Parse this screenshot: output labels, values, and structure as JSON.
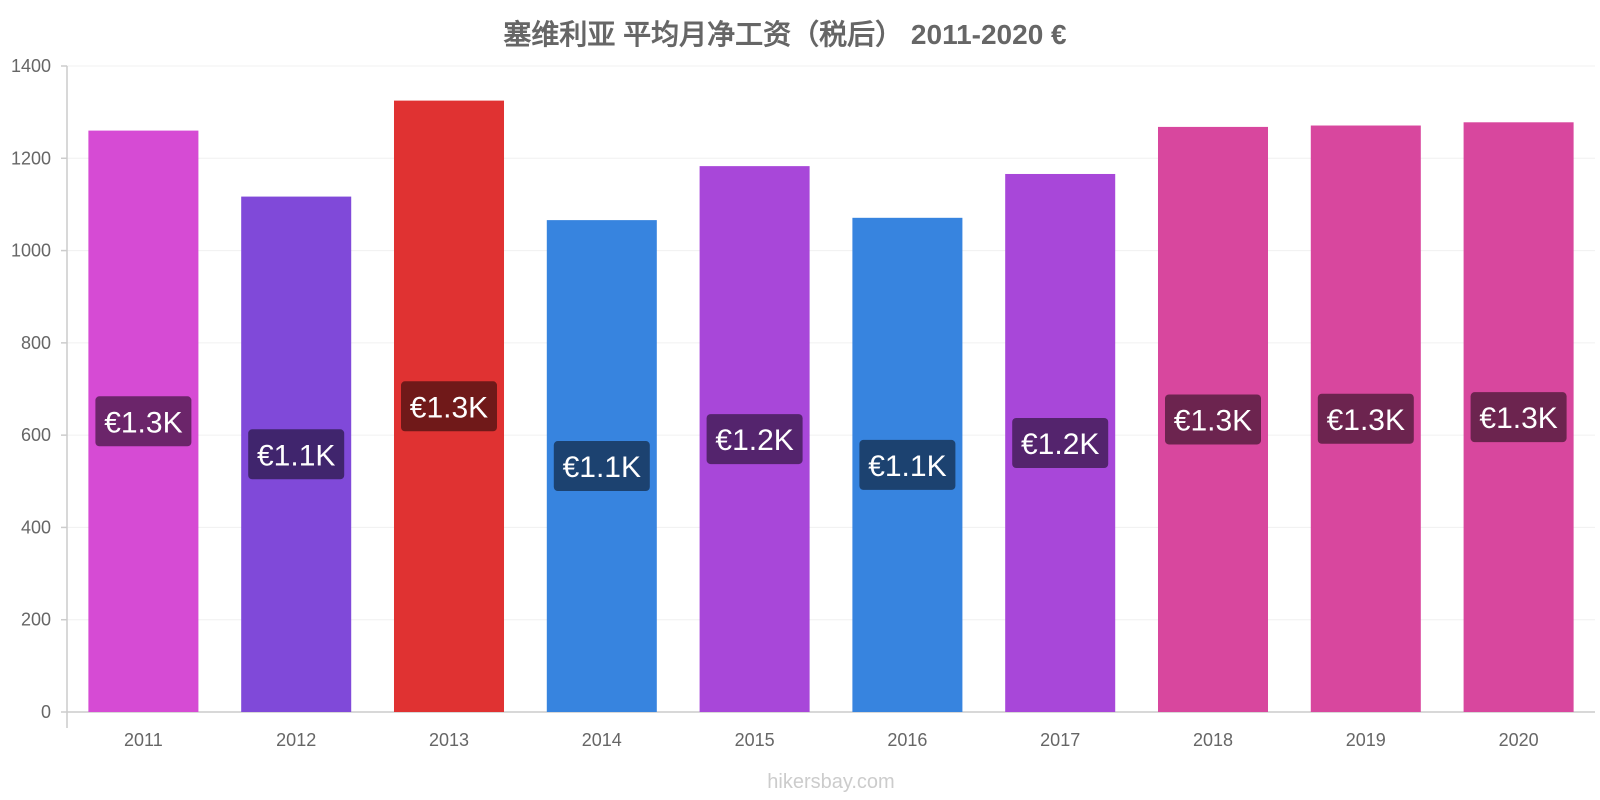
{
  "chart_data": {
    "type": "bar",
    "title": "塞维利亚 平均月净工资（税后） 2011-2020 €",
    "categories": [
      "2011",
      "2012",
      "2013",
      "2014",
      "2015",
      "2016",
      "2017",
      "2018",
      "2019",
      "2020"
    ],
    "values": [
      1260,
      1117,
      1325,
      1066,
      1183,
      1071,
      1166,
      1268,
      1271,
      1278
    ],
    "data_labels": [
      "€1.3K",
      "€1.1K",
      "€1.3K",
      "€1.1K",
      "€1.2K",
      "€1.1K",
      "€1.2K",
      "€1.3K",
      "€1.3K",
      "€1.3K"
    ],
    "bar_colors": [
      "#d64bd4",
      "#8049d9",
      "#e03232",
      "#3784df",
      "#a847d9",
      "#3784df",
      "#a847d9",
      "#d8479e",
      "#d8479e",
      "#d8479e"
    ],
    "label_bg_colors": [
      "#6b256a",
      "#40256d",
      "#701919",
      "#1c4270",
      "#54246d",
      "#1c4270",
      "#54246d",
      "#6c244f",
      "#6c244f",
      "#6c244f"
    ],
    "yticks": [
      0,
      200,
      400,
      600,
      800,
      1000,
      1200,
      1400
    ],
    "ylim": [
      0,
      1400
    ],
    "grid": true
  },
  "watermark": "hikersbay.com"
}
